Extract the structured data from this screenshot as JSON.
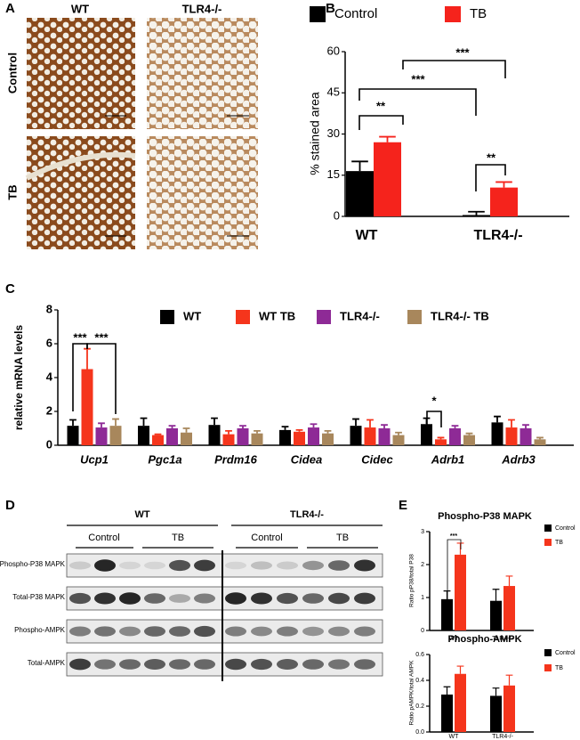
{
  "figure_a": {
    "panel_label": "A",
    "column_labels": [
      "WT",
      "TLR4-/-"
    ],
    "row_labels": [
      "Control",
      "TB"
    ]
  },
  "chart_data": [
    {
      "type": "bar",
      "panel_label": "B",
      "ylabel": "% stained area",
      "categories": [
        "WT",
        "TLR4-/-"
      ],
      "series": [
        {
          "name": "Control",
          "color": "#000000",
          "values": [
            16.5,
            0.5
          ],
          "errors": [
            3.5,
            1.2
          ]
        },
        {
          "name": "TB",
          "color": "#f5231c",
          "values": [
            27,
            10.5
          ],
          "errors": [
            2,
            2
          ]
        }
      ],
      "ylim": [
        0,
        60
      ],
      "yticks": [
        0,
        15,
        30,
        45,
        60
      ],
      "legend": "top",
      "annotations": [
        "**",
        "**",
        "***",
        "***"
      ]
    },
    {
      "type": "bar",
      "panel_label": "C",
      "ylabel": "relative mRNA levels",
      "categories": [
        "Ucp1",
        "Pgc1a",
        "Prdm16",
        "Cidea",
        "Cidec",
        "Adrb1",
        "Adrb3"
      ],
      "series": [
        {
          "name": "WT",
          "color": "#000000",
          "values": [
            1.15,
            1.15,
            1.2,
            0.9,
            1.15,
            1.25,
            1.35
          ],
          "errors": [
            0.35,
            0.45,
            0.4,
            0.2,
            0.4,
            0.35,
            0.35
          ]
        },
        {
          "name": "WT TB",
          "color": "#f5351c",
          "values": [
            4.5,
            0.6,
            0.65,
            0.8,
            1.05,
            0.35,
            1.05
          ],
          "errors": [
            1.2,
            0.05,
            0.2,
            0.1,
            0.45,
            0.1,
            0.45
          ]
        },
        {
          "name": "TLR4-/-",
          "color": "#8e2a96",
          "values": [
            1.05,
            1.0,
            1.0,
            1.05,
            1.0,
            1.0,
            1.0
          ],
          "errors": [
            0.25,
            0.15,
            0.15,
            0.2,
            0.2,
            0.15,
            0.2
          ]
        },
        {
          "name": "TLR4-/- TB",
          "color": "#a8875c",
          "values": [
            1.15,
            0.75,
            0.7,
            0.7,
            0.6,
            0.6,
            0.35
          ],
          "errors": [
            0.4,
            0.25,
            0.15,
            0.15,
            0.15,
            0.1,
            0.1
          ]
        }
      ],
      "ylim": [
        0,
        8
      ],
      "yticks": [
        0,
        2,
        4,
        6,
        8
      ],
      "legend": "top",
      "annotations": [
        "***",
        "***",
        "*"
      ]
    },
    {
      "type": "bar",
      "panel_label": "E",
      "title": "Phospho-P38 MAPK",
      "ylabel": "Ratio pP38/total P38",
      "categories": [
        "WT",
        "TLR4-/-"
      ],
      "series": [
        {
          "name": "Control",
          "color": "#000000",
          "values": [
            0.95,
            0.9
          ],
          "errors": [
            0.25,
            0.35
          ]
        },
        {
          "name": "TB",
          "color": "#f5351c",
          "values": [
            2.3,
            1.35
          ],
          "errors": [
            0.35,
            0.3
          ]
        }
      ],
      "ylim": [
        0,
        3
      ],
      "yticks": [
        0,
        1,
        2,
        3
      ],
      "legend": "right",
      "annotations": [
        "***"
      ]
    },
    {
      "type": "bar",
      "title": "Phospho-AMPK",
      "ylabel": "Ratio pAMPK/total AMPK",
      "categories": [
        "WT",
        "TLR4-/-"
      ],
      "series": [
        {
          "name": "Control",
          "color": "#000000",
          "values": [
            0.29,
            0.28
          ],
          "errors": [
            0.06,
            0.06
          ]
        },
        {
          "name": "TB",
          "color": "#f5351c",
          "values": [
            0.45,
            0.36
          ],
          "errors": [
            0.06,
            0.08
          ]
        }
      ],
      "ylim": [
        0,
        0.6
      ],
      "yticks": [
        {
          "value": 0,
          "label": "0.0"
        },
        0.2,
        0.4,
        0.6
      ],
      "legend": "right"
    }
  ],
  "figure_d": {
    "panel_label": "D",
    "genotype_labels": [
      "WT",
      "TLR4-/-"
    ],
    "group_labels": [
      "Control",
      "TB",
      "Control",
      "TB"
    ],
    "row_labels": [
      "Phospho-P38 MAPK",
      "Total-P38 MAPK",
      "Phospho-AMPK",
      "Total-AMPK"
    ]
  }
}
